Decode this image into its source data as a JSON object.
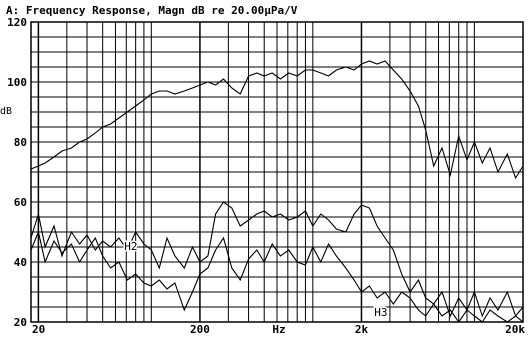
{
  "chart_data": {
    "type": "line",
    "title": "A: Frequency Response, Magn dB re 20.00µPa/V",
    "xlabel": "Hz",
    "ylabel": "dB",
    "x_scale": "log",
    "xlim": [
      18,
      20000
    ],
    "ylim": [
      20,
      120
    ],
    "x_ticks": [
      {
        "value": 20,
        "label": "20"
      },
      {
        "value": 200,
        "label": "200"
      },
      {
        "value": 2000,
        "label": "2k"
      },
      {
        "value": 20000,
        "label": "20k"
      }
    ],
    "y_ticks": [
      20,
      40,
      60,
      80,
      100,
      120
    ],
    "grid": true,
    "annotations": [
      {
        "text": "H2",
        "x": 68,
        "y": 44
      },
      {
        "text": "H3",
        "x": 2400,
        "y": 22
      }
    ],
    "series": [
      {
        "name": "",
        "x": [
          18,
          20,
          22,
          25,
          28,
          32,
          36,
          40,
          45,
          50,
          56,
          63,
          71,
          80,
          90,
          100,
          112,
          125,
          140,
          160,
          180,
          200,
          224,
          250,
          280,
          315,
          355,
          400,
          450,
          500,
          560,
          630,
          710,
          800,
          900,
          1000,
          1120,
          1250,
          1400,
          1600,
          1800,
          2000,
          2240,
          2500,
          2800,
          3150,
          3550,
          4000,
          4500,
          5000,
          5600,
          6300,
          7100,
          8000,
          9000,
          10000,
          11200,
          12500,
          14000,
          16000,
          18000,
          20000
        ],
        "values": [
          71,
          72,
          73,
          75,
          77,
          78,
          80,
          81,
          83,
          85,
          86,
          88,
          90,
          92,
          94,
          96,
          97,
          97,
          96,
          97,
          98,
          99,
          100,
          99,
          101,
          98,
          96,
          102,
          103,
          102,
          103,
          101,
          103,
          102,
          104,
          104,
          103,
          102,
          104,
          105,
          104,
          106,
          107,
          106,
          107,
          104,
          101,
          97,
          92,
          84,
          72,
          78,
          69,
          82,
          74,
          80,
          73,
          78,
          70,
          76,
          68,
          72
        ]
      },
      {
        "name": "",
        "x": [
          18,
          20,
          22,
          25,
          28,
          32,
          36,
          40,
          45,
          50,
          56,
          63,
          71,
          80,
          90,
          100,
          112,
          125,
          140,
          160,
          180,
          200,
          224,
          250,
          280,
          315,
          355,
          400,
          450,
          500,
          560,
          630,
          710,
          800,
          900,
          1000,
          1120,
          1250,
          1400,
          1600,
          1800,
          2000,
          2240,
          2500,
          2800,
          3150,
          3550,
          4000,
          4500,
          5000,
          5600,
          6300,
          7100,
          8000,
          9000,
          10000,
          11200,
          12500,
          14000,
          16000,
          18000,
          20000
        ],
        "values": [
          48,
          56,
          45,
          52,
          42,
          50,
          46,
          49,
          44,
          47,
          45,
          48,
          44,
          50,
          46,
          44,
          38,
          48,
          42,
          38,
          45,
          40,
          42,
          56,
          60,
          58,
          52,
          54,
          56,
          57,
          55,
          56,
          54,
          55,
          57,
          52,
          56,
          54,
          51,
          50,
          56,
          59,
          58,
          52,
          48,
          44,
          36,
          30,
          34,
          28,
          26,
          30,
          22,
          28,
          24,
          30,
          22,
          28,
          24,
          30,
          22,
          25
        ]
      },
      {
        "name": "",
        "x": [
          18,
          20,
          22,
          25,
          28,
          32,
          36,
          40,
          45,
          50,
          56,
          63,
          71,
          80,
          90,
          100,
          112,
          125,
          140,
          160,
          180,
          200,
          224,
          250,
          280,
          315,
          355,
          400,
          450,
          500,
          560,
          630,
          710,
          800,
          900,
          1000,
          1120,
          1250,
          1400,
          1600,
          1800,
          2000,
          2240,
          2500,
          2800,
          3150,
          3550,
          4000,
          4500,
          5000,
          5600,
          6300,
          7100,
          8000,
          9000,
          10000,
          11200,
          12500,
          14000,
          16000,
          18000,
          20000
        ],
        "values": [
          44,
          50,
          40,
          47,
          43,
          46,
          40,
          44,
          48,
          42,
          38,
          40,
          34,
          36,
          33,
          32,
          34,
          31,
          33,
          24,
          30,
          36,
          38,
          44,
          48,
          38,
          34,
          41,
          44,
          40,
          46,
          42,
          44,
          40,
          39,
          45,
          40,
          46,
          42,
          38,
          34,
          30,
          32,
          28,
          30,
          26,
          30,
          28,
          24,
          22,
          26,
          22,
          24,
          20,
          24,
          22,
          20,
          24,
          22,
          20,
          22,
          20
        ]
      }
    ]
  }
}
